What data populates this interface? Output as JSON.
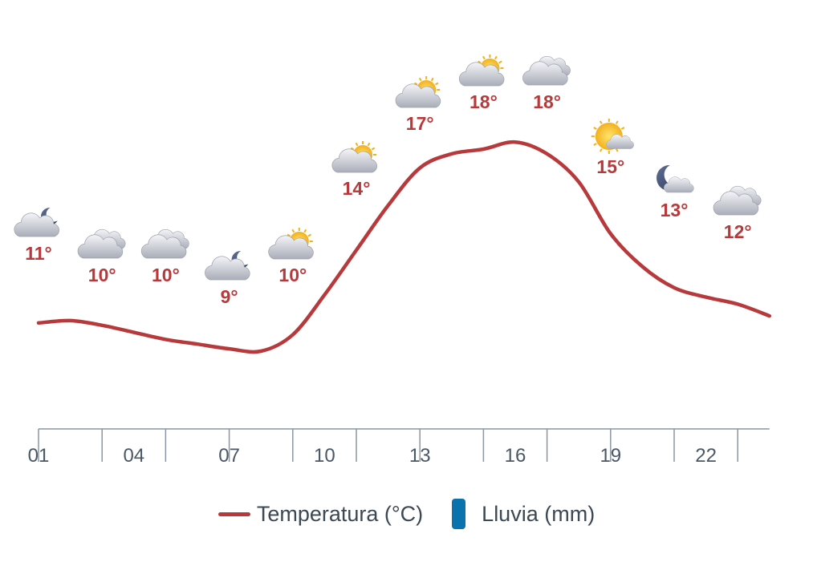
{
  "chart_data": {
    "type": "line",
    "x_ticks": [
      "01",
      "04",
      "07",
      "10",
      "13",
      "16",
      "19",
      "22"
    ],
    "hours": [
      1,
      3,
      5,
      7,
      9,
      11,
      13,
      15,
      17,
      19,
      21,
      23
    ],
    "series": [
      {
        "name": "Temperatura (°C)",
        "color": "#b8393b",
        "labels": [
          "11°",
          "10°",
          "10°",
          "9°",
          "10°",
          "14°",
          "17°",
          "18°",
          "18°",
          "15°",
          "13°",
          "12°"
        ],
        "values": [
          11,
          10,
          10,
          9,
          10,
          14,
          17,
          18,
          18,
          15,
          13,
          12
        ]
      },
      {
        "name": "Lluvia (mm)",
        "color": "#0a72ad",
        "values": [
          0,
          0,
          0,
          0,
          0,
          0,
          0,
          0,
          0,
          0,
          0,
          0
        ]
      }
    ],
    "icons": [
      "cloud-moon-icon",
      "clouds-icon",
      "clouds-icon",
      "cloud-moon-icon",
      "cloud-sun-icon",
      "cloud-sun-icon",
      "cloud-sun-icon",
      "cloud-sun-icon",
      "clouds-icon",
      "sun-cloud-icon",
      "moon-cloud-icon",
      "clouds-icon"
    ],
    "curve": {
      "hours": [
        1,
        2,
        3,
        4,
        5,
        6,
        7,
        8,
        9,
        10,
        11,
        12,
        13,
        14,
        15,
        16,
        17,
        18,
        19,
        20,
        21,
        22,
        23,
        24
      ],
      "values": [
        10.2,
        10.3,
        10.1,
        9.8,
        9.5,
        9.3,
        9.1,
        9.0,
        9.7,
        11.4,
        13.3,
        15.2,
        16.8,
        17.4,
        17.6,
        17.9,
        17.4,
        16.2,
        14.0,
        12.6,
        11.7,
        11.3,
        11.0,
        10.5
      ]
    },
    "legend": [
      {
        "label": "Temperatura (°C)",
        "kind": "line",
        "color": "#b8393b"
      },
      {
        "label": "Lluvia (mm)",
        "kind": "bar",
        "color": "#0a72ad"
      }
    ],
    "legend_position": "bottom-center",
    "grid": false
  }
}
